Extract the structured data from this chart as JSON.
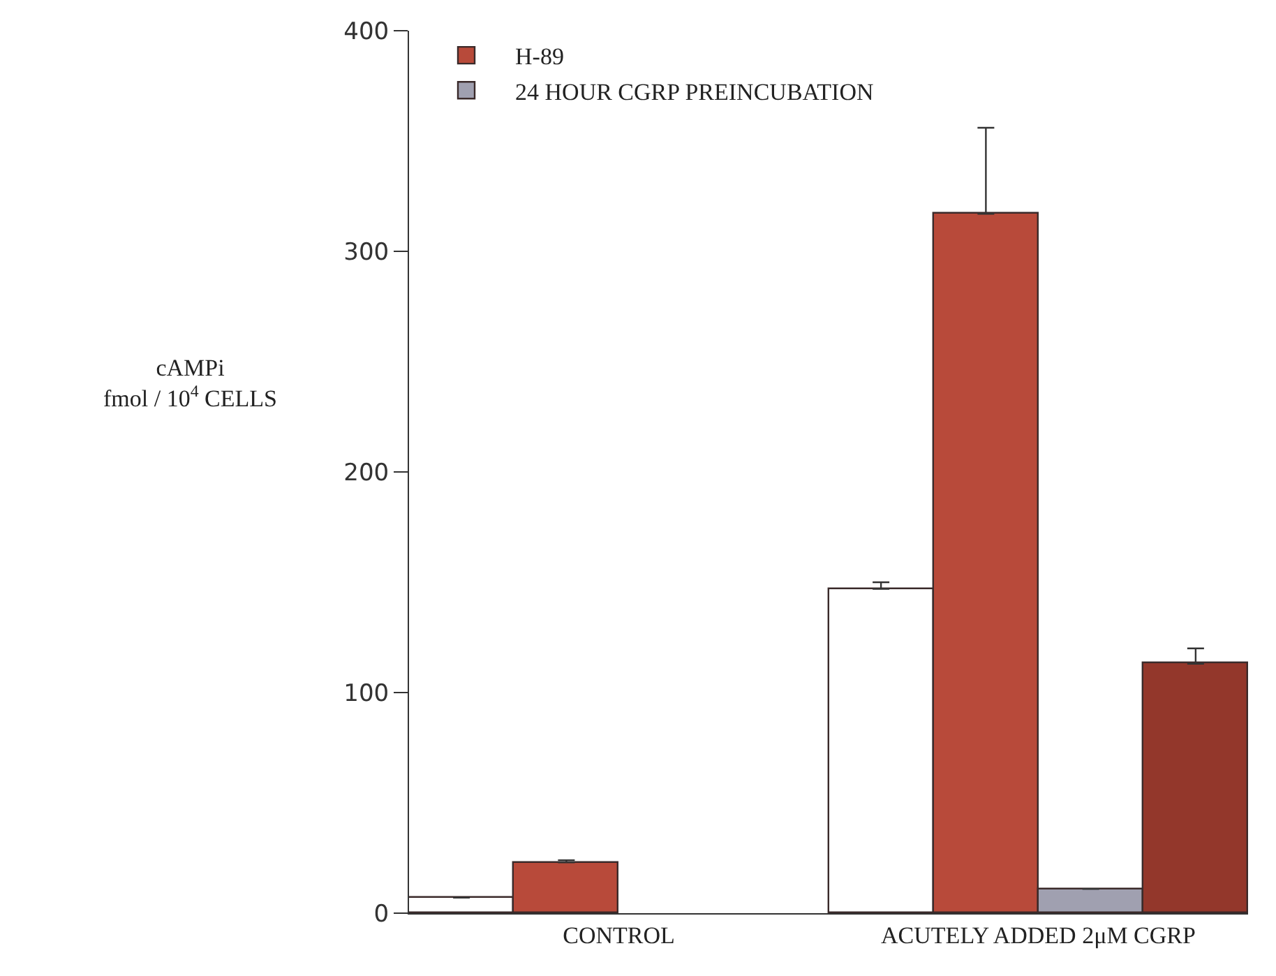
{
  "chart_data": {
    "type": "bar",
    "ylabel": "cAMPi\nfmol / 10$^{4}$ CELLS",
    "categories": [
      "CONTROL",
      "ACUTELY ADDED 2μM CGRP"
    ],
    "series": [
      {
        "color": "#ffffff",
        "values": [
          7,
          147
        ],
        "errors": [
          null,
          3
        ]
      },
      {
        "name": "H-89",
        "color": "#b84a3a",
        "values": [
          23,
          317
        ],
        "errors": [
          1,
          39
        ]
      },
      {
        "name": "24 HOUR CGRP PREINCUBATION",
        "color": "#a0a0b0",
        "values": [
          null,
          11
        ],
        "errors": [
          null,
          null
        ]
      },
      {
        "color": "#93372b",
        "values": [
          null,
          113
        ],
        "errors": [
          null,
          7
        ]
      }
    ],
    "ylim": [
      0,
      400
    ],
    "yticks": [
      0,
      100,
      200,
      300,
      400
    ],
    "grid": false,
    "legend": "top left"
  }
}
